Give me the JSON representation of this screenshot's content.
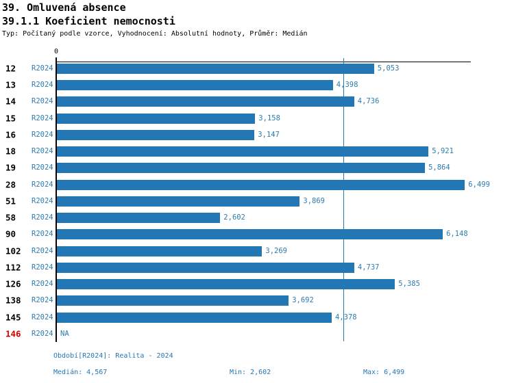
{
  "header": {
    "title": "39. Omluvená absence",
    "subtitle": "39.1.1 Koeficient nemocnosti",
    "meta": "Typ: Počítaný podle vzorce, Vyhodnocení: Absolutní hodnoty, Průměr: Medián"
  },
  "colors": {
    "bar": "#2377B4",
    "blue_text": "#2B7CB0",
    "footer_text": "#2377B4",
    "highlight_red": "#D10000",
    "axis": "#000000",
    "median_line": "#2377B4"
  },
  "chart_data": {
    "type": "bar",
    "orientation": "horizontal",
    "title": "39.1.1 Koeficient nemocnosti",
    "series_label": "R2024",
    "categories": [
      "12",
      "13",
      "14",
      "15",
      "16",
      "18",
      "19",
      "28",
      "51",
      "58",
      "90",
      "102",
      "112",
      "126",
      "138",
      "145",
      "146"
    ],
    "values": [
      5053,
      4398,
      4736,
      3158,
      3147,
      5921,
      5864,
      6499,
      3869,
      2602,
      6148,
      3269,
      4737,
      5385,
      3692,
      4378,
      null
    ],
    "value_labels": [
      "5,053",
      "4,398",
      "4,736",
      "3,158",
      "3,147",
      "5,921",
      "5,864",
      "6,499",
      "3,869",
      "2,602",
      "6,148",
      "3,269",
      "4,737",
      "5,385",
      "3,692",
      "4,378",
      "NA"
    ],
    "highlighted_categories": [
      "146"
    ],
    "x_zero_label": "0",
    "xlim": [
      0,
      6605
    ],
    "median_value": 4567,
    "grid": false,
    "legend": false
  },
  "footer": {
    "period": "Období[R2024]: Realita - 2024",
    "median": "Medián: 4,567",
    "min": "Min: 2,602",
    "max": "Max: 6,499"
  }
}
